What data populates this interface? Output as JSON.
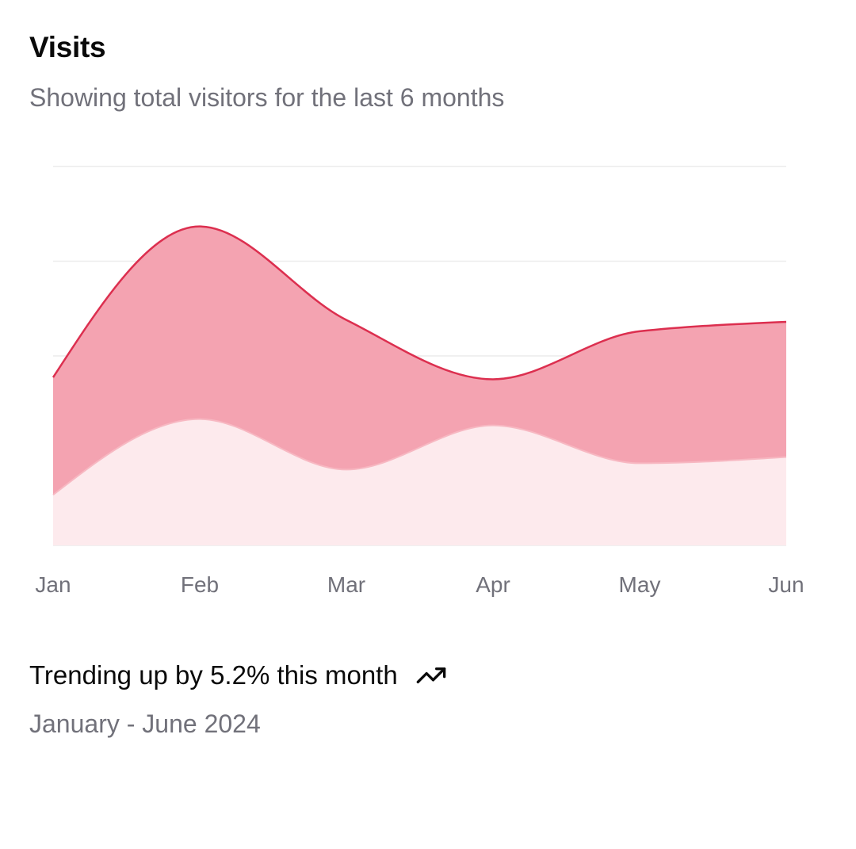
{
  "card": {
    "title": "Visits",
    "subtitle": "Showing total visitors for the last 6 months",
    "trend_text": "Trending up by 5.2% this month",
    "trend_icon": "trending-up-icon",
    "date_range": "January - June 2024"
  },
  "colors": {
    "desktop_stroke": "#dc2f4f",
    "desktop_fill": "#f4a3b1",
    "mobile_stroke": "#f7b8c2",
    "mobile_fill": "#fdeaed",
    "grid": "#ececec",
    "muted_text": "#71717a"
  },
  "chart_data": {
    "type": "area",
    "stacked": true,
    "categories": [
      "Jan",
      "Feb",
      "Mar",
      "Apr",
      "May",
      "Jun"
    ],
    "series": [
      {
        "values": [
          80,
          200,
          120,
          190,
          130,
          140
        ]
      },
      {
        "values": [
          186,
          305,
          237,
          73,
          209,
          214
        ]
      }
    ],
    "ylim": [
      0,
      600
    ],
    "grid": true,
    "legend": "none"
  }
}
